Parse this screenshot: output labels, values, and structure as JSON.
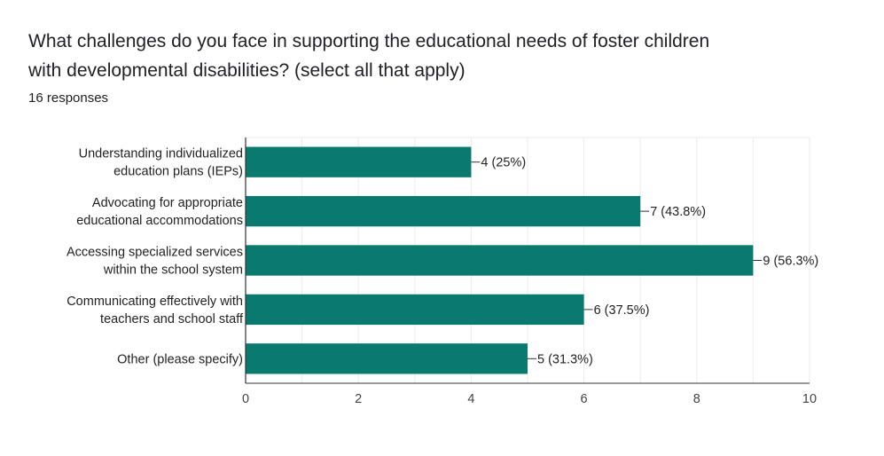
{
  "question": {
    "title_line1": "What challenges do you face in supporting the educational needs of foster children",
    "title_line2": "with developmental disabilities? (select all that apply)",
    "responses": "16 responses"
  },
  "colors": {
    "bar": "#0b7a6e",
    "grid": "#ebebeb",
    "axis": "#333333"
  },
  "chart_data": {
    "type": "bar",
    "orientation": "horizontal",
    "categories": [
      [
        "Understanding individualized",
        "education plans (IEPs)"
      ],
      [
        "Advocating for appropriate",
        "educational accommodations"
      ],
      [
        "Accessing specialized services",
        "within the school system"
      ],
      [
        "Communicating effectively with",
        "teachers and school staff"
      ],
      [
        "Other (please specify)"
      ]
    ],
    "values": [
      4,
      7,
      9,
      6,
      5
    ],
    "data_labels": [
      "4 (25%)",
      "7 (43.8%)",
      "9 (56.3%)",
      "6 (37.5%)",
      "5 (31.3%)"
    ],
    "xlim": [
      0,
      10
    ],
    "xticks": [
      0,
      2,
      4,
      6,
      8,
      10
    ],
    "grid": true,
    "legend": "none"
  }
}
